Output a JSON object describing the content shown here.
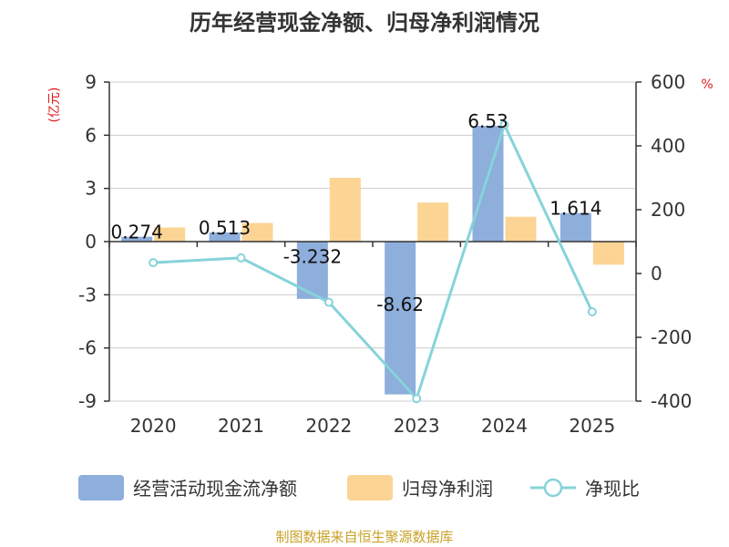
{
  "chart_data": {
    "type": "bar",
    "title": "历年经营现金净额、归母净利润情况",
    "categories": [
      "2020",
      "2021",
      "2022",
      "2023",
      "2024",
      "2025"
    ],
    "y_left": {
      "unit": "(亿元)",
      "ylim": [
        -9,
        9
      ],
      "ticks": [
        9,
        6,
        3,
        0,
        -3,
        -6,
        -9
      ]
    },
    "y_right": {
      "unit": "%",
      "ylim": [
        -400,
        600
      ],
      "ticks": [
        600,
        400,
        200,
        0,
        -200,
        -400
      ]
    },
    "series": [
      {
        "name": "经营活动现金流净额",
        "type": "bar",
        "axis": "left",
        "color": "#8eaedb",
        "values": [
          0.274,
          0.513,
          -3.232,
          -8.62,
          6.53,
          1.614
        ],
        "labels": [
          "0.274",
          "0.513",
          "-3.232",
          "-8.62",
          "6.53",
          "1.614"
        ]
      },
      {
        "name": "归母净利润",
        "type": "bar",
        "axis": "left",
        "color": "#fcd494",
        "values": [
          0.8,
          1.05,
          3.6,
          2.2,
          1.4,
          -1.3
        ]
      },
      {
        "name": "净现比",
        "type": "line",
        "axis": "right",
        "color": "#86d3da",
        "values": [
          34,
          49,
          -90,
          -392,
          466,
          -120
        ]
      }
    ],
    "grid": true,
    "legend": "bottom"
  },
  "footer": {
    "source": "制图数据来自恒生聚源数据库"
  }
}
